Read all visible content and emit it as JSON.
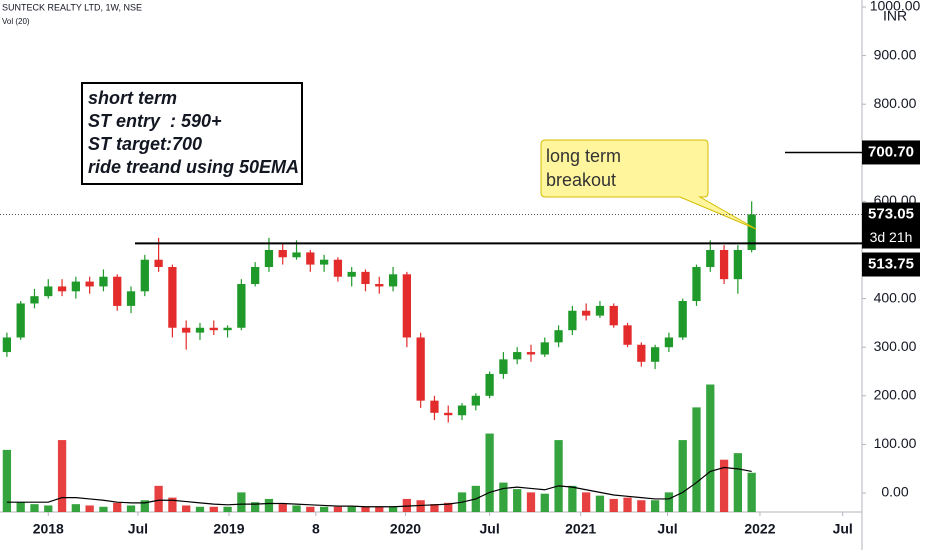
{
  "header": {
    "symbol": "SUNTECK REALTY LTD, 1W, NSE",
    "indicator": "Vol (20)"
  },
  "chart_data": {
    "type": "candlestick",
    "currency": "INR",
    "x": [
      0,
      1,
      2,
      3,
      4,
      5,
      6,
      7,
      8,
      9,
      10,
      11,
      12,
      13,
      14,
      15,
      16,
      17,
      18,
      19,
      20,
      21,
      22,
      23,
      24,
      25,
      26,
      27,
      28,
      29,
      30,
      31,
      32,
      33,
      34,
      35,
      36,
      37,
      38,
      39,
      40,
      41,
      42,
      43,
      44,
      45,
      46,
      47,
      48,
      49,
      50,
      51,
      52,
      53,
      54
    ],
    "ohlc": [
      [
        290,
        330,
        280,
        320
      ],
      [
        320,
        395,
        315,
        390
      ],
      [
        390,
        420,
        380,
        405
      ],
      [
        405,
        440,
        400,
        425
      ],
      [
        425,
        440,
        405,
        415
      ],
      [
        415,
        445,
        400,
        435
      ],
      [
        435,
        445,
        410,
        425
      ],
      [
        425,
        460,
        415,
        445
      ],
      [
        445,
        450,
        375,
        385
      ],
      [
        385,
        425,
        370,
        415
      ],
      [
        415,
        490,
        405,
        480
      ],
      [
        480,
        525,
        455,
        465
      ],
      [
        465,
        470,
        320,
        340
      ],
      [
        340,
        355,
        295,
        330
      ],
      [
        330,
        350,
        315,
        340
      ],
      [
        340,
        355,
        325,
        335
      ],
      [
        335,
        345,
        320,
        340
      ],
      [
        340,
        440,
        335,
        430
      ],
      [
        430,
        475,
        425,
        465
      ],
      [
        465,
        525,
        455,
        500
      ],
      [
        500,
        515,
        470,
        485
      ],
      [
        485,
        520,
        480,
        495
      ],
      [
        495,
        500,
        455,
        470
      ],
      [
        470,
        490,
        455,
        480
      ],
      [
        480,
        485,
        435,
        445
      ],
      [
        445,
        465,
        425,
        455
      ],
      [
        455,
        460,
        415,
        430
      ],
      [
        430,
        445,
        410,
        425
      ],
      [
        425,
        465,
        415,
        450
      ],
      [
        450,
        455,
        300,
        320
      ],
      [
        320,
        330,
        175,
        190
      ],
      [
        190,
        200,
        150,
        165
      ],
      [
        165,
        180,
        145,
        160
      ],
      [
        160,
        185,
        150,
        180
      ],
      [
        180,
        205,
        170,
        200
      ],
      [
        200,
        250,
        195,
        245
      ],
      [
        245,
        290,
        235,
        275
      ],
      [
        275,
        300,
        265,
        290
      ],
      [
        290,
        305,
        270,
        285
      ],
      [
        285,
        320,
        280,
        310
      ],
      [
        310,
        345,
        300,
        335
      ],
      [
        335,
        385,
        325,
        375
      ],
      [
        375,
        390,
        355,
        365
      ],
      [
        365,
        395,
        360,
        385
      ],
      [
        385,
        390,
        340,
        345
      ],
      [
        345,
        350,
        300,
        305
      ],
      [
        305,
        310,
        260,
        270
      ],
      [
        270,
        305,
        255,
        300
      ],
      [
        300,
        330,
        290,
        320
      ],
      [
        320,
        400,
        315,
        395
      ],
      [
        395,
        470,
        385,
        465
      ],
      [
        465,
        520,
        455,
        500
      ],
      [
        500,
        510,
        430,
        440
      ],
      [
        440,
        510,
        410,
        500
      ],
      [
        500,
        600,
        495,
        573.05
      ]
    ],
    "volume": [
      95,
      15,
      12,
      10,
      110,
      12,
      10,
      8,
      14,
      10,
      18,
      40,
      22,
      10,
      8,
      8,
      8,
      30,
      15,
      20,
      12,
      10,
      8,
      8,
      8,
      8,
      8,
      8,
      8,
      20,
      18,
      12,
      14,
      30,
      40,
      120,
      45,
      35,
      30,
      28,
      110,
      40,
      30,
      25,
      20,
      22,
      18,
      18,
      30,
      110,
      160,
      195,
      80,
      90,
      60
    ],
    "volume_ma": [
      15,
      15,
      15,
      15,
      22,
      22,
      20,
      18,
      15,
      14,
      14,
      18,
      18,
      16,
      14,
      12,
      11,
      12,
      12,
      13,
      13,
      12,
      11,
      10,
      9,
      9,
      8,
      8,
      8,
      9,
      10,
      11,
      12,
      15,
      20,
      30,
      36,
      38,
      36,
      34,
      40,
      38,
      34,
      30,
      26,
      24,
      22,
      20,
      20,
      30,
      45,
      62,
      68,
      66,
      62
    ],
    "volume_ylim": [
      0,
      260
    ],
    "xlim": [
      -0.5,
      62
    ],
    "xticks": [
      {
        "value": 3,
        "label": "2018"
      },
      {
        "value": 9.5,
        "label": "Jul"
      },
      {
        "value": 16.1,
        "label": "2019"
      },
      {
        "value": 22.4,
        "label": "8"
      },
      {
        "value": 28.9,
        "label": "2020"
      },
      {
        "value": 35,
        "label": "Jul"
      },
      {
        "value": 41.6,
        "label": "2021"
      },
      {
        "value": 47.9,
        "label": "Jul"
      },
      {
        "value": 54.6,
        "label": "2022"
      },
      {
        "value": 60.6,
        "label": "Jul"
      }
    ],
    "ylim": [
      0,
      1000
    ],
    "yticks": [
      {
        "value": 0,
        "label": "0.00"
      },
      {
        "value": 100,
        "label": "100.00"
      },
      {
        "value": 200,
        "label": "200.00"
      },
      {
        "value": 300,
        "label": "300.00"
      },
      {
        "value": 400,
        "label": "400.00"
      },
      {
        "value": 600,
        "label": "600.00"
      },
      {
        "value": 800,
        "label": "800.00"
      },
      {
        "value": 900,
        "label": "900.00"
      },
      {
        "value": 1000,
        "label": "1000.00"
      }
    ],
    "up_color": "#1f9a2a",
    "down_color": "#e32b2b",
    "last_price": 573.05,
    "countdown": "3d 21h",
    "hlines": [
      {
        "value": 513.75
      },
      {
        "value": 700.7,
        "label": "700.70"
      }
    ],
    "note": [
      "short term",
      "ST entry  : 590+",
      "ST target:700",
      "ride treand using 50EMA"
    ],
    "callout": [
      "long term",
      "breakout"
    ]
  }
}
